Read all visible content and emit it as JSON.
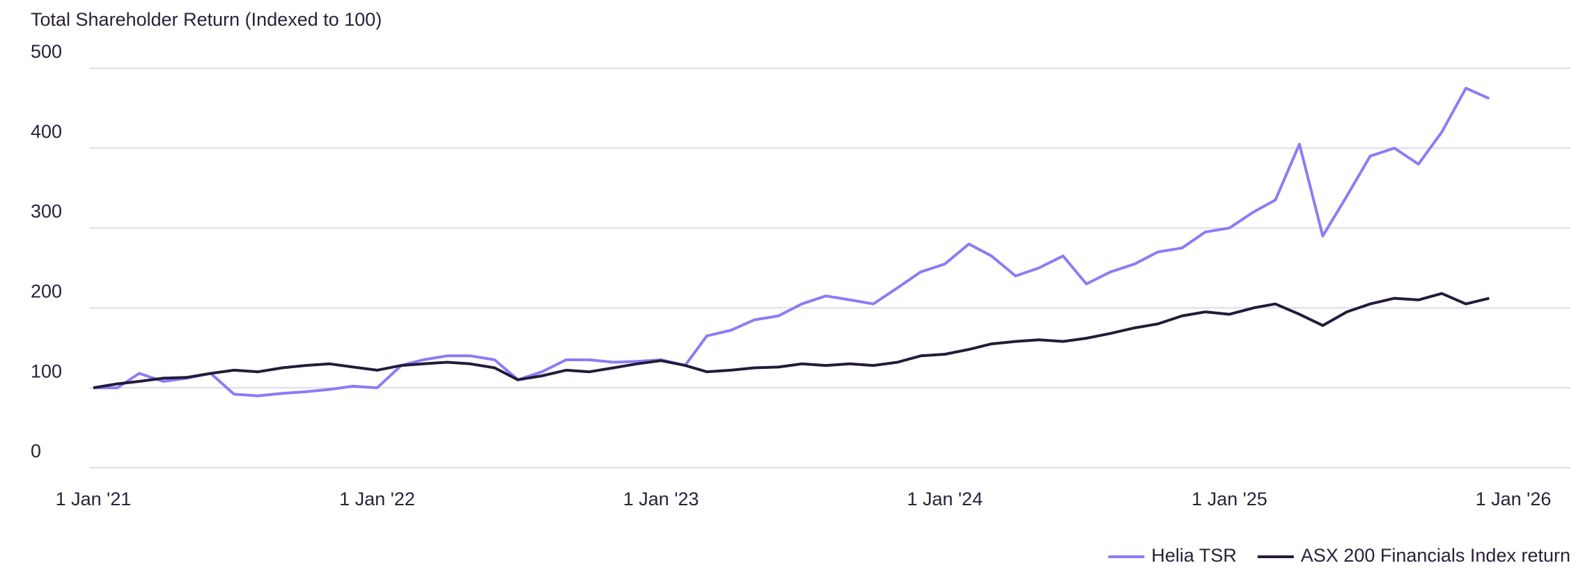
{
  "chart_data": {
    "type": "line",
    "title": "Total Shareholder Return (Indexed to 100)",
    "x": [
      "2021-01-01",
      "2021-02-01",
      "2021-03-01",
      "2021-04-01",
      "2021-05-01",
      "2021-06-01",
      "2021-07-01",
      "2021-08-01",
      "2021-09-01",
      "2021-10-01",
      "2021-11-01",
      "2021-12-01",
      "2022-01-01",
      "2022-02-01",
      "2022-03-01",
      "2022-04-01",
      "2022-05-01",
      "2022-06-01",
      "2022-07-01",
      "2022-08-01",
      "2022-09-01",
      "2022-10-01",
      "2022-11-01",
      "2022-12-01",
      "2023-01-01",
      "2023-02-01",
      "2023-03-01",
      "2023-04-01",
      "2023-05-01",
      "2023-06-01",
      "2023-07-01",
      "2023-08-01",
      "2023-09-01",
      "2023-10-01",
      "2023-11-01",
      "2023-12-01",
      "2024-01-01",
      "2024-02-01",
      "2024-03-01",
      "2024-04-01",
      "2024-05-01",
      "2024-06-01",
      "2024-07-01",
      "2024-08-01",
      "2024-09-01",
      "2024-10-01",
      "2024-11-01",
      "2024-12-01",
      "2025-01-01",
      "2025-02-01",
      "2025-03-01",
      "2025-04-01",
      "2025-05-01",
      "2025-06-01",
      "2025-07-01",
      "2025-08-01",
      "2025-09-01",
      "2025-10-01",
      "2025-11-01",
      "2025-12-01"
    ],
    "series": [
      {
        "name": "Helia TSR",
        "color": "#8b7cf6",
        "values": [
          100,
          100,
          118,
          108,
          112,
          118,
          92,
          90,
          93,
          95,
          98,
          102,
          100,
          128,
          135,
          140,
          140,
          135,
          110,
          120,
          135,
          135,
          132,
          133,
          135,
          128,
          165,
          172,
          185,
          190,
          205,
          215,
          210,
          205,
          225,
          245,
          255,
          280,
          265,
          240,
          250,
          265,
          230,
          245,
          255,
          270,
          275,
          295,
          300,
          320,
          335,
          405,
          290,
          340,
          390,
          400,
          380,
          420,
          475,
          462
        ]
      },
      {
        "name": "ASX 200 Financials Index return",
        "color": "#241a3a",
        "values": [
          100,
          105,
          108,
          112,
          113,
          118,
          122,
          120,
          125,
          128,
          130,
          126,
          122,
          128,
          130,
          132,
          130,
          125,
          110,
          115,
          122,
          120,
          125,
          130,
          134,
          128,
          120,
          122,
          125,
          126,
          130,
          128,
          130,
          128,
          132,
          140,
          142,
          148,
          155,
          158,
          160,
          158,
          162,
          168,
          175,
          180,
          190,
          195,
          192,
          200,
          205,
          192,
          178,
          195,
          205,
          212,
          210,
          218,
          205,
          212
        ]
      }
    ],
    "xlim": [
      "2021-01-01",
      "2026-01-01"
    ],
    "xticks": [
      {
        "value": "2021-01-01",
        "label": "1 Jan '21"
      },
      {
        "value": "2022-01-01",
        "label": "1 Jan '22"
      },
      {
        "value": "2023-01-01",
        "label": "1 Jan '23"
      },
      {
        "value": "2024-01-01",
        "label": "1 Jan '24"
      },
      {
        "value": "2025-01-01",
        "label": "1 Jan '25"
      },
      {
        "value": "2026-01-01",
        "label": "1 Jan '26"
      }
    ],
    "ylim": [
      0,
      500
    ],
    "yticks": [
      0,
      100,
      200,
      300,
      400,
      500
    ],
    "grid": true,
    "legend": "bottom-right"
  }
}
